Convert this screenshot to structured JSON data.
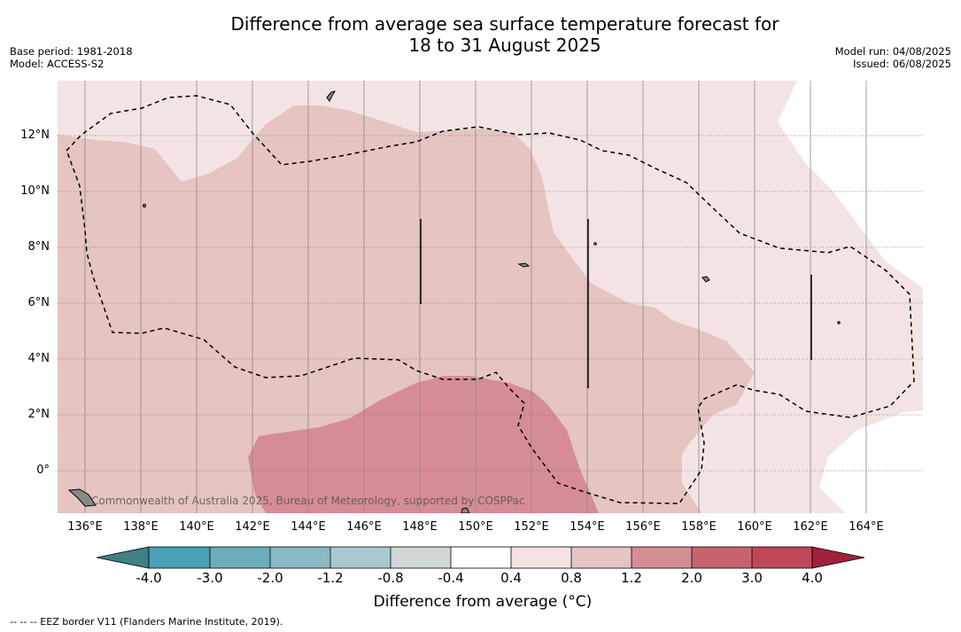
{
  "title": {
    "line1": "Difference from average sea surface temperature forecast for",
    "line2": "18 to 31 August 2025"
  },
  "meta": {
    "base_period": "Base period: 1981-2018",
    "model": "Model: ACCESS-S2",
    "model_run": "Model run: 04/08/2025",
    "issued": "Issued: 06/08/2025"
  },
  "map": {
    "latitude_labels": [
      "12°N",
      "10°N",
      "8°N",
      "6°N",
      "4°N",
      "2°N",
      "0°"
    ],
    "longitude_labels": [
      "136°E",
      "138°E",
      "140°E",
      "142°E",
      "144°E",
      "146°E",
      "148°E",
      "150°E",
      "152°E",
      "154°E",
      "156°E",
      "158°E",
      "160°E",
      "162°E",
      "164°E"
    ],
    "credit": "Commonwealth of Australia 2025, Bureau of Meteorology, supported by COSPPac",
    "fill_colors": {
      "0.4_to_0.8": "#f3e4e3",
      "0.8_to_1.2": "#e5c4c1",
      "1.2_to_2.0": "#d68c95"
    }
  },
  "colorbar": {
    "title": "Difference from average (°C)",
    "tick_labels": [
      "-4.0",
      "-3.0",
      "-2.0",
      "-1.2",
      "-0.8",
      "-0.4",
      "0.4",
      "0.8",
      "1.2",
      "2.0",
      "3.0",
      "4.0"
    ],
    "colors": [
      "#3f7f86",
      "#4aa0b4",
      "#6aadbd",
      "#8ab8c4",
      "#aac8cd",
      "#d1d6d7",
      "#ffffff",
      "#f3e4e3",
      "#e5c4c1",
      "#d68c95",
      "#c9646e",
      "#c04757",
      "#a3203b"
    ]
  },
  "legend_note": "--  --  -- EEZ border V11 (Flanders Marine Institute, 2019)."
}
